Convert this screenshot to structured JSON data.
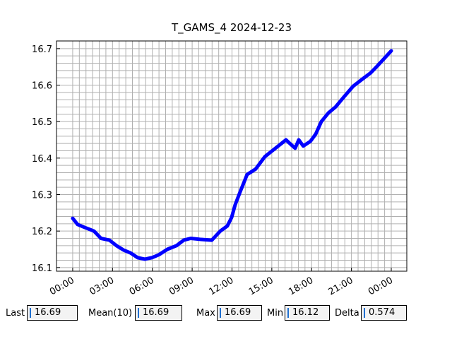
{
  "chart_data": {
    "type": "line",
    "title": "T_GAMS_4 2024-12-23",
    "x": [
      0,
      0.37,
      0.9,
      1.6,
      2.13,
      2.77,
      3.3,
      3.83,
      4.36,
      4.9,
      5.43,
      5.96,
      6.49,
      7.13,
      7.82,
      8.36,
      8.89,
      9.69,
      10.48,
      11.12,
      11.65,
      11.97,
      12.24,
      12.61,
      13.14,
      13.78,
      14.48,
      15.27,
      16.07,
      16.45,
      16.76,
      17.03,
      17.37,
      17.91,
      18.31,
      18.73,
      19.27,
      19.8,
      20.44,
      21.13,
      21.77,
      22.46,
      22.99,
      23.52,
      24.0
    ],
    "series": [
      {
        "name": "T_GAMS_4",
        "color": "#0000ff",
        "values": [
          16.235,
          16.218,
          16.21,
          16.2,
          16.18,
          16.175,
          16.16,
          16.148,
          16.14,
          16.127,
          16.123,
          16.127,
          16.135,
          16.15,
          16.16,
          16.175,
          16.18,
          16.177,
          16.175,
          16.2,
          16.214,
          16.237,
          16.272,
          16.307,
          16.355,
          16.37,
          16.404,
          16.427,
          16.45,
          16.437,
          16.427,
          16.45,
          16.433,
          16.446,
          16.466,
          16.5,
          16.524,
          16.54,
          16.568,
          16.597,
          16.615,
          16.634,
          16.654,
          16.675,
          16.694
        ]
      }
    ],
    "xlim": [
      -1.22,
      25.17
    ],
    "xticks": [
      {
        "value": 0,
        "label": "00:00"
      },
      {
        "value": 3,
        "label": "03:00"
      },
      {
        "value": 6,
        "label": "06:00"
      },
      {
        "value": 9,
        "label": "09:00"
      },
      {
        "value": 12,
        "label": "12:00"
      },
      {
        "value": 15,
        "label": "15:00"
      },
      {
        "value": 18,
        "label": "18:00"
      },
      {
        "value": 21,
        "label": "21:00"
      },
      {
        "value": 24,
        "label": "00:00"
      }
    ],
    "ylim": [
      16.09,
      16.721
    ],
    "yticks": [
      16.1,
      16.2,
      16.3,
      16.4,
      16.5,
      16.6,
      16.7
    ],
    "grid": true,
    "minor_grid": true
  },
  "stats": [
    {
      "label": "Last",
      "value": 16.69
    },
    {
      "label": "Mean(10)",
      "value": 16.69
    },
    {
      "label": "Max",
      "value": 16.69
    },
    {
      "label": "Min",
      "value": 16.12
    },
    {
      "label": "Delta",
      "value": 0.574
    }
  ]
}
